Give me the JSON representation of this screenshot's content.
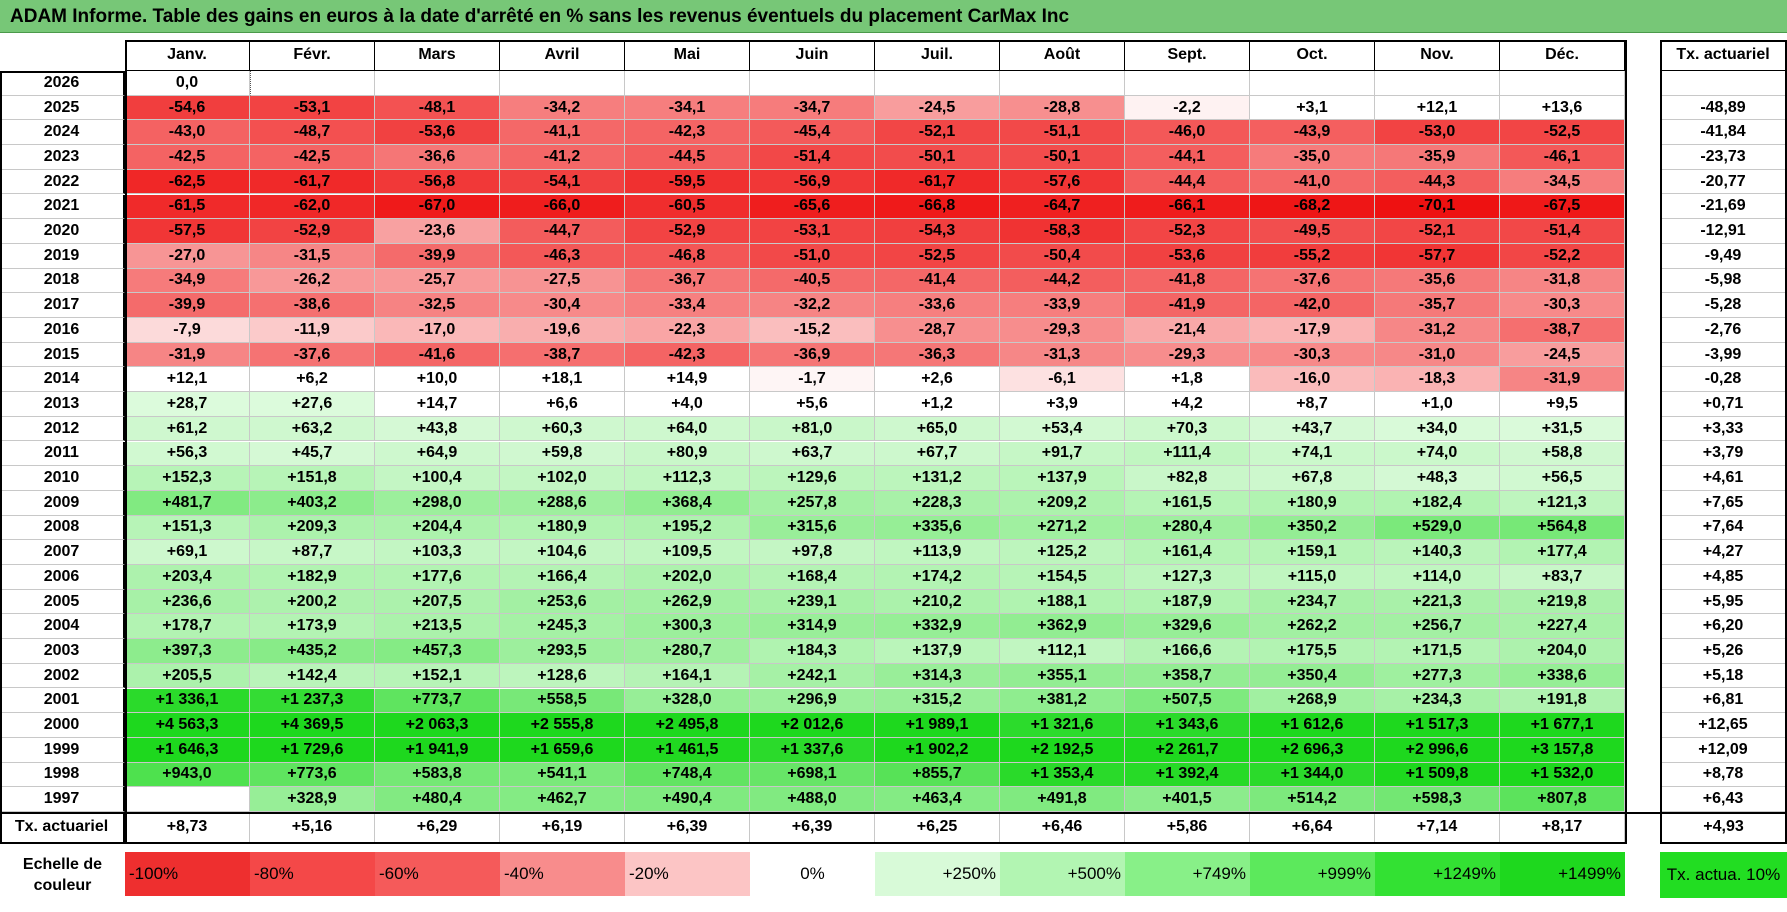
{
  "title": "ADAM Informe. Table des gains en euros à la date d'arrêté en % sans les revenus éventuels du placement CarMax Inc",
  "chart_data": {
    "type": "table",
    "columns": [
      "Janv.",
      "Févr.",
      "Mars",
      "Avril",
      "Mai",
      "Juin",
      "Juil.",
      "Août",
      "Sept.",
      "Oct.",
      "Nov.",
      "Déc."
    ],
    "rate_column_label": "Tx. actuariel",
    "rows": [
      {
        "year": "2026",
        "values": [
          "0,0",
          "",
          "",
          "",
          "",
          "",
          "",
          "",
          "",
          "",
          "",
          ""
        ],
        "rate": ""
      },
      {
        "year": "2025",
        "values": [
          "-54,6",
          "-53,1",
          "-48,1",
          "-34,2",
          "-34,1",
          "-34,7",
          "-24,5",
          "-28,8",
          "-2,2",
          "+3,1",
          "+12,1",
          "+13,6"
        ],
        "rate": "-48,89"
      },
      {
        "year": "2024",
        "values": [
          "-43,0",
          "-48,7",
          "-53,6",
          "-41,1",
          "-42,3",
          "-45,4",
          "-52,1",
          "-51,1",
          "-46,0",
          "-43,9",
          "-53,0",
          "-52,5"
        ],
        "rate": "-41,84"
      },
      {
        "year": "2023",
        "values": [
          "-42,5",
          "-42,5",
          "-36,6",
          "-41,2",
          "-44,5",
          "-51,4",
          "-50,1",
          "-50,1",
          "-44,1",
          "-35,0",
          "-35,9",
          "-46,1"
        ],
        "rate": "-23,73"
      },
      {
        "year": "2022",
        "values": [
          "-62,5",
          "-61,7",
          "-56,8",
          "-54,1",
          "-59,5",
          "-56,9",
          "-61,7",
          "-57,6",
          "-44,4",
          "-41,0",
          "-44,3",
          "-34,5"
        ],
        "rate": "-20,77"
      },
      {
        "year": "2021",
        "values": [
          "-61,5",
          "-62,0",
          "-67,0",
          "-66,0",
          "-60,5",
          "-65,6",
          "-66,8",
          "-64,7",
          "-66,1",
          "-68,2",
          "-70,1",
          "-67,5"
        ],
        "rate": "-21,69"
      },
      {
        "year": "2020",
        "values": [
          "-57,5",
          "-52,9",
          "-23,6",
          "-44,7",
          "-52,9",
          "-53,1",
          "-54,3",
          "-58,3",
          "-52,3",
          "-49,5",
          "-52,1",
          "-51,4"
        ],
        "rate": "-12,91"
      },
      {
        "year": "2019",
        "values": [
          "-27,0",
          "-31,5",
          "-39,9",
          "-46,3",
          "-46,8",
          "-51,0",
          "-52,5",
          "-50,4",
          "-53,6",
          "-55,2",
          "-57,7",
          "-52,2"
        ],
        "rate": "-9,49"
      },
      {
        "year": "2018",
        "values": [
          "-34,9",
          "-26,2",
          "-25,7",
          "-27,5",
          "-36,7",
          "-40,5",
          "-41,4",
          "-44,2",
          "-41,8",
          "-37,6",
          "-35,6",
          "-31,8"
        ],
        "rate": "-5,98"
      },
      {
        "year": "2017",
        "values": [
          "-39,9",
          "-38,6",
          "-32,5",
          "-30,4",
          "-33,4",
          "-32,2",
          "-33,6",
          "-33,9",
          "-41,9",
          "-42,0",
          "-35,7",
          "-30,3"
        ],
        "rate": "-5,28"
      },
      {
        "year": "2016",
        "values": [
          "-7,9",
          "-11,9",
          "-17,0",
          "-19,6",
          "-22,3",
          "-15,2",
          "-28,7",
          "-29,3",
          "-21,4",
          "-17,9",
          "-31,2",
          "-38,7"
        ],
        "rate": "-2,76"
      },
      {
        "year": "2015",
        "values": [
          "-31,9",
          "-37,6",
          "-41,6",
          "-38,7",
          "-42,3",
          "-36,9",
          "-36,3",
          "-31,3",
          "-29,3",
          "-30,3",
          "-31,0",
          "-24,5"
        ],
        "rate": "-3,99"
      },
      {
        "year": "2014",
        "values": [
          "+12,1",
          "+6,2",
          "+10,0",
          "+18,1",
          "+14,9",
          "-1,7",
          "+2,6",
          "-6,1",
          "+1,8",
          "-16,0",
          "-18,3",
          "-31,9"
        ],
        "rate": "-0,28"
      },
      {
        "year": "2013",
        "values": [
          "+28,7",
          "+27,6",
          "+14,7",
          "+6,6",
          "+4,0",
          "+5,6",
          "+1,2",
          "+3,9",
          "+4,2",
          "+8,7",
          "+1,0",
          "+9,5"
        ],
        "rate": "+0,71"
      },
      {
        "year": "2012",
        "values": [
          "+61,2",
          "+63,2",
          "+43,8",
          "+60,3",
          "+64,0",
          "+81,0",
          "+65,0",
          "+53,4",
          "+70,3",
          "+43,7",
          "+34,0",
          "+31,5"
        ],
        "rate": "+3,33"
      },
      {
        "year": "2011",
        "values": [
          "+56,3",
          "+45,7",
          "+64,9",
          "+59,8",
          "+80,9",
          "+63,7",
          "+67,7",
          "+91,7",
          "+111,4",
          "+74,1",
          "+74,0",
          "+58,8"
        ],
        "rate": "+3,79"
      },
      {
        "year": "2010",
        "values": [
          "+152,3",
          "+151,8",
          "+100,4",
          "+102,0",
          "+112,3",
          "+129,6",
          "+131,2",
          "+137,9",
          "+82,8",
          "+67,8",
          "+48,3",
          "+56,5"
        ],
        "rate": "+4,61"
      },
      {
        "year": "2009",
        "values": [
          "+481,7",
          "+403,2",
          "+298,0",
          "+288,6",
          "+368,4",
          "+257,8",
          "+228,3",
          "+209,2",
          "+161,5",
          "+180,9",
          "+182,4",
          "+121,3"
        ],
        "rate": "+7,65"
      },
      {
        "year": "2008",
        "values": [
          "+151,3",
          "+209,3",
          "+204,4",
          "+180,9",
          "+195,2",
          "+315,6",
          "+335,6",
          "+271,2",
          "+280,4",
          "+350,2",
          "+529,0",
          "+564,8"
        ],
        "rate": "+7,64"
      },
      {
        "year": "2007",
        "values": [
          "+69,1",
          "+87,7",
          "+103,3",
          "+104,6",
          "+109,5",
          "+97,8",
          "+113,9",
          "+125,2",
          "+161,4",
          "+159,1",
          "+140,3",
          "+177,4"
        ],
        "rate": "+4,27"
      },
      {
        "year": "2006",
        "values": [
          "+203,4",
          "+182,9",
          "+177,6",
          "+166,4",
          "+202,0",
          "+168,4",
          "+174,2",
          "+154,5",
          "+127,3",
          "+115,0",
          "+114,0",
          "+83,7"
        ],
        "rate": "+4,85"
      },
      {
        "year": "2005",
        "values": [
          "+236,6",
          "+200,2",
          "+207,5",
          "+253,6",
          "+262,9",
          "+239,1",
          "+210,2",
          "+188,1",
          "+187,9",
          "+234,7",
          "+221,3",
          "+219,8"
        ],
        "rate": "+5,95"
      },
      {
        "year": "2004",
        "values": [
          "+178,7",
          "+173,9",
          "+213,5",
          "+245,3",
          "+300,3",
          "+314,9",
          "+332,9",
          "+362,9",
          "+329,6",
          "+262,2",
          "+256,7",
          "+227,4"
        ],
        "rate": "+6,20"
      },
      {
        "year": "2003",
        "values": [
          "+397,3",
          "+435,2",
          "+457,3",
          "+293,5",
          "+280,7",
          "+184,3",
          "+137,9",
          "+112,1",
          "+166,6",
          "+175,5",
          "+171,5",
          "+204,0"
        ],
        "rate": "+5,26"
      },
      {
        "year": "2002",
        "values": [
          "+205,5",
          "+142,4",
          "+152,1",
          "+128,6",
          "+164,1",
          "+242,1",
          "+314,3",
          "+355,1",
          "+358,7",
          "+350,4",
          "+277,3",
          "+338,6"
        ],
        "rate": "+5,18"
      },
      {
        "year": "2001",
        "values": [
          "+1 336,1",
          "+1 237,3",
          "+773,7",
          "+558,5",
          "+328,0",
          "+296,9",
          "+315,2",
          "+381,2",
          "+507,5",
          "+268,9",
          "+234,3",
          "+191,8"
        ],
        "rate": "+6,81"
      },
      {
        "year": "2000",
        "values": [
          "+4 563,3",
          "+4 369,5",
          "+2 063,3",
          "+2 555,8",
          "+2 495,8",
          "+2 012,6",
          "+1 989,1",
          "+1 321,6",
          "+1 343,6",
          "+1 612,6",
          "+1 517,3",
          "+1 677,1"
        ],
        "rate": "+12,65"
      },
      {
        "year": "1999",
        "values": [
          "+1 646,3",
          "+1 729,6",
          "+1 941,9",
          "+1 659,6",
          "+1 461,5",
          "+1 337,6",
          "+1 902,2",
          "+2 192,5",
          "+2 261,7",
          "+2 696,3",
          "+2 996,6",
          "+3 157,8"
        ],
        "rate": "+12,09"
      },
      {
        "year": "1998",
        "values": [
          "+943,0",
          "+773,6",
          "+583,8",
          "+541,1",
          "+748,4",
          "+698,1",
          "+855,7",
          "+1 353,4",
          "+1 392,4",
          "+1 344,0",
          "+1 509,8",
          "+1 532,0"
        ],
        "rate": "+8,78"
      },
      {
        "year": "1997",
        "values": [
          "",
          "+328,9",
          "+480,4",
          "+462,7",
          "+490,4",
          "+488,0",
          "+463,4",
          "+491,8",
          "+401,5",
          "+514,2",
          "+598,3",
          "+807,8"
        ],
        "rate": "+6,43"
      }
    ],
    "footer": {
      "label": "Tx. actuariel",
      "values": [
        "+8,73",
        "+5,16",
        "+6,29",
        "+6,19",
        "+6,39",
        "+6,39",
        "+6,25",
        "+6,46",
        "+5,86",
        "+6,64",
        "+7,14",
        "+8,17"
      ],
      "rate": "+4,93"
    },
    "color_scale": {
      "label": "Echelle de couleur",
      "steps": [
        "-100%",
        "-80%",
        "-60%",
        "-40%",
        "-20%",
        "0%",
        "+250%",
        "+500%",
        "+749%",
        "+999%",
        "+1249%",
        "+1499%"
      ],
      "step_colors": [
        "#ee2f2f",
        "#f44848",
        "#f55a5a",
        "#f88c8c",
        "#fcc5c5",
        "#ffffff",
        "#d8fad8",
        "#b2f5b2",
        "#88f088",
        "#5ce95c",
        "#33e133",
        "#1ed81e"
      ],
      "rate_note": "Tx. actua. 10%",
      "rate_note_color": "#22dd22"
    }
  }
}
